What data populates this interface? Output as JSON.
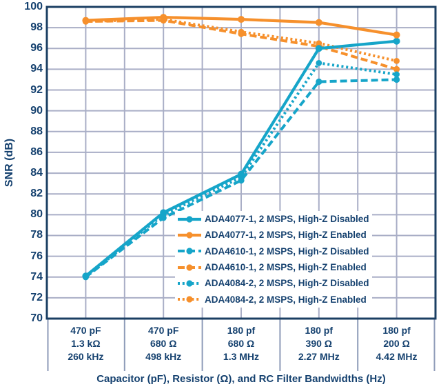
{
  "chart_data": {
    "type": "line",
    "title": "",
    "ylabel": "SNR (dB)",
    "xlabel": "Capacitor (pF), Resistor (Ω), and RC Filter Bandwidths (Hz)",
    "ylim": [
      70,
      100
    ],
    "ytick_step": 2,
    "yticks": [
      100,
      98,
      96,
      94,
      92,
      90,
      88,
      86,
      84,
      82,
      80,
      78,
      76,
      74,
      72,
      70
    ],
    "grid": true,
    "legend_position": "inside-center-right",
    "categories": [
      [
        "470 pF",
        "1.3 kΩ",
        "260 kHz"
      ],
      [
        "470 pF",
        "680 Ω",
        "498 kHz"
      ],
      [
        "180 pf",
        "680 Ω",
        "1.3 MHz"
      ],
      [
        "180 pf",
        "390 Ω",
        "2.27 MHz"
      ],
      [
        "180 pf",
        "200 Ω",
        "4.42 MHz"
      ]
    ],
    "series": [
      {
        "name": "ADA4077-1, 2 MSPS, High-Z Disabled",
        "color_key": "teal",
        "line_style": "solid",
        "marker": "circle",
        "values": [
          74.1,
          80.2,
          83.9,
          96.0,
          96.7
        ]
      },
      {
        "name": "ADA4077-1, 2 MSPS, High-Z Enabled",
        "color_key": "orange",
        "line_style": "solid",
        "marker": "circle",
        "values": [
          98.7,
          99.0,
          98.8,
          98.5,
          97.3
        ]
      },
      {
        "name": "ADA4610-1, 2 MSPS, High-Z Disabled",
        "color_key": "teal",
        "line_style": "dashed",
        "marker": "circle",
        "values": [
          74.0,
          79.7,
          83.3,
          92.8,
          93.0
        ]
      },
      {
        "name": "ADA4610-1, 2 MSPS, High-Z Enabled",
        "color_key": "orange",
        "line_style": "dashed",
        "marker": "circle",
        "values": [
          98.6,
          98.7,
          97.4,
          96.2,
          94.0
        ]
      },
      {
        "name": "ADA4084-2, 2 MSPS, High-Z Disabled",
        "color_key": "teal",
        "line_style": "dotted",
        "marker": "circle",
        "values": [
          74.0,
          80.0,
          83.6,
          94.6,
          93.5
        ]
      },
      {
        "name": "ADA4084-2, 2 MSPS, High-Z Enabled",
        "color_key": "orange",
        "line_style": "dotted",
        "marker": "circle",
        "values": [
          98.6,
          98.8,
          97.6,
          96.5,
          94.8
        ]
      }
    ],
    "colors": {
      "teal": "#16A5C9",
      "orange": "#F6902C",
      "navy_text": "#15416F",
      "grid": "#A9AEC6",
      "border": "#1B3F63",
      "divider": "#8E9BB8",
      "background": "#FFFFFF"
    }
  }
}
